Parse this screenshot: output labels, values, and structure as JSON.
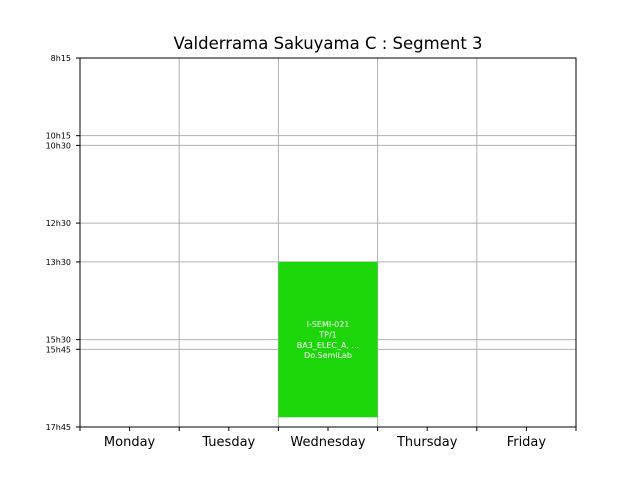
{
  "chart_data": {
    "type": "timetable",
    "title": "Valderrama Sakuyama C : Segment 3",
    "days": [
      "Monday",
      "Tuesday",
      "Wednesday",
      "Thursday",
      "Friday"
    ],
    "y_ticks": [
      {
        "label": "8h15",
        "hours": 8.25
      },
      {
        "label": "10h15",
        "hours": 10.25
      },
      {
        "label": "10h30",
        "hours": 10.5
      },
      {
        "label": "12h30",
        "hours": 12.5
      },
      {
        "label": "13h30",
        "hours": 13.5
      },
      {
        "label": "15h30",
        "hours": 15.5
      },
      {
        "label": "15h45",
        "hours": 15.75
      },
      {
        "label": "17h45",
        "hours": 17.75
      }
    ],
    "ylim": [
      8.25,
      17.75
    ],
    "grid": true,
    "events": [
      {
        "day": "Wednesday",
        "start": 13.5,
        "end": 17.5,
        "color": "#1dd60a",
        "lines": [
          "I-SEMI-021",
          "TP/1",
          "BA3_ELEC_A, ...",
          "Do.SemiLab"
        ]
      }
    ]
  }
}
